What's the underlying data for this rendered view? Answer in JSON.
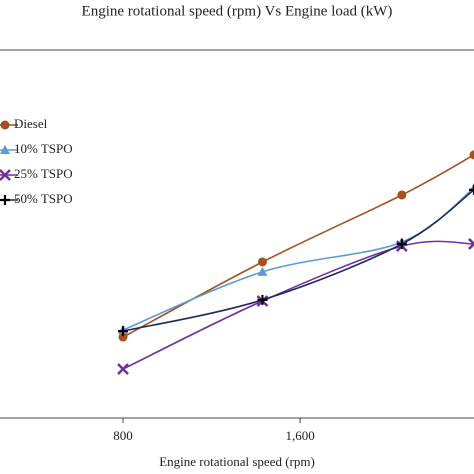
{
  "chart_data": {
    "type": "line",
    "title": "Engine rotational speed (rpm) Vs  Engine load (kW)",
    "x_label": "Engine rotational speed (rpm)",
    "x": [
      800,
      1430,
      2060,
      2386
    ],
    "xlim": [
      244,
      2386
    ],
    "xticks": [
      800,
      {
        "value": 1600,
        "label": "1,600"
      }
    ],
    "ylim": [
      0,
      100
    ],
    "series": [
      {
        "name": "Diesel",
        "color": "#a4501f",
        "marker": "circle",
        "values": [
          22,
          42.4,
          60.6,
          71.5
        ]
      },
      {
        "name": "10% TSPO",
        "color": "#5b9bd5",
        "marker": "triangle",
        "values": [
          23.9,
          39.7,
          47.8,
          62.5
        ]
      },
      {
        "name": "25% TSPO",
        "color": "#7030a0",
        "marker": "cross",
        "values": [
          13.3,
          31.8,
          46.7,
          47.3
        ]
      },
      {
        "name": "50% TSPO",
        "color": "#1f2a5a",
        "marker": "plus",
        "values": [
          23.6,
          32.1,
          47.3,
          62
        ]
      }
    ],
    "legend": "upper left"
  }
}
